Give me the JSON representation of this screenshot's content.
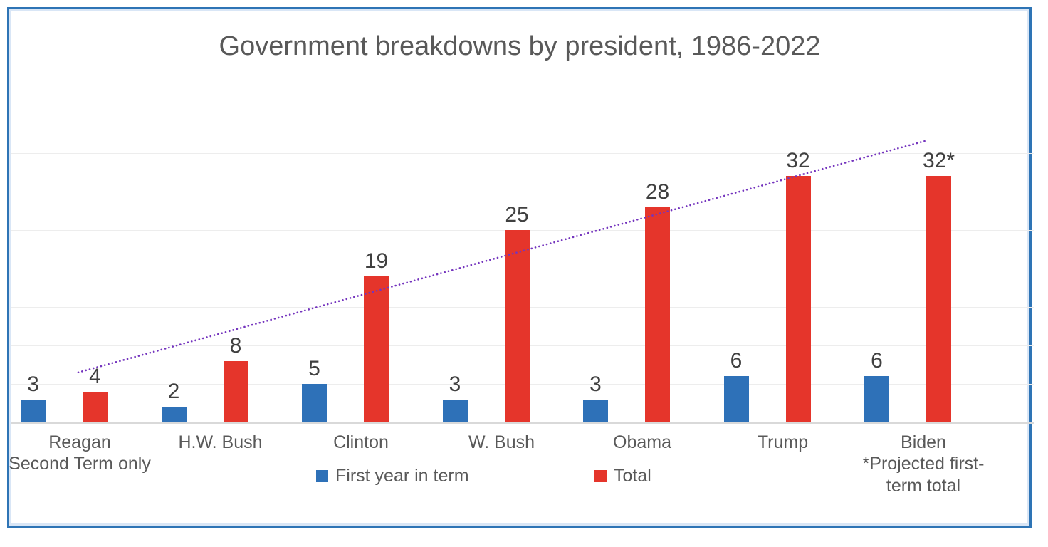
{
  "title": "Government breakdowns by president, 1986-2022",
  "chart_data": {
    "type": "bar",
    "title": "Government breakdowns by president, 1986-2022",
    "categories": [
      "Reagan",
      "H.W. Bush",
      "Clinton",
      "W. Bush",
      "Obama",
      "Trump",
      "Biden"
    ],
    "category_notes": [
      "Second Term only",
      "",
      "",
      "",
      "",
      "",
      "*Projected first-\nterm total"
    ],
    "series": [
      {
        "name": "First year in term",
        "color": "#2E71B8",
        "values": [
          3,
          2,
          5,
          3,
          3,
          6,
          6
        ],
        "data_labels": [
          "3",
          "2",
          "5",
          "3",
          "3",
          "6",
          "6"
        ]
      },
      {
        "name": "Total",
        "color": "#E5352B",
        "values": [
          4,
          8,
          19,
          25,
          28,
          32,
          32
        ],
        "data_labels": [
          "4",
          "8",
          "19",
          "25",
          "28",
          "32",
          "32*"
        ]
      }
    ],
    "ylim": [
      0,
      40
    ],
    "gridline_values": [
      5,
      10,
      15,
      20,
      25,
      30,
      35
    ],
    "grid": true,
    "y_axis_labels_visible": false,
    "xlabel": "",
    "ylabel": "",
    "legend_position": "bottom",
    "trendline": {
      "type": "linear",
      "stroke": "dotted",
      "color": "#7434BE",
      "series": "Total",
      "start_value": 6.5,
      "end_value": 36.6
    }
  },
  "colors": {
    "frame_border": "#2E74B5",
    "frame_border_inner": "#D9E6F6",
    "gridline": "#EDEDED",
    "axis_line": "#D9D9D9",
    "data_label_text": "#404040",
    "category_text": "#595959"
  }
}
